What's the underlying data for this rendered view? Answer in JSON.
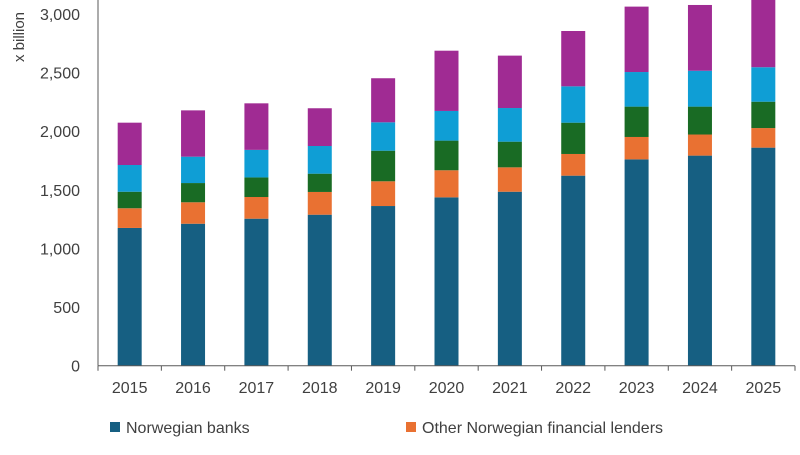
{
  "chart_data": {
    "type": "bar",
    "stacked": true,
    "ylabel": "x billion",
    "ylim": [
      0,
      3000
    ],
    "yticks": [
      "0",
      "500",
      "1,000",
      "1,500",
      "2,000",
      "2,500",
      "3,000"
    ],
    "ytick_values": [
      0,
      500,
      1000,
      1500,
      2000,
      2500,
      3000
    ],
    "grid": false,
    "legend_position": "bottom",
    "categories": [
      "2015",
      "2016",
      "2017",
      "2018",
      "2019",
      "2020",
      "2021",
      "2022",
      "2023",
      "2024",
      "2025"
    ],
    "series": [
      {
        "name": "Norwegian banks",
        "color": "#165f82",
        "values": [
          1175,
          1211,
          1254,
          1288,
          1362,
          1436,
          1484,
          1621,
          1760,
          1792,
          1860
        ]
      },
      {
        "name": "Other Norwegian financial lenders",
        "color": "#e97132",
        "values": [
          168,
          183,
          185,
          194,
          211,
          231,
          208,
          185,
          191,
          180,
          167
        ]
      },
      {
        "color": "#196b24",
        "values": [
          141,
          164,
          167,
          156,
          261,
          253,
          219,
          267,
          259,
          238,
          225
        ]
      },
      {
        "color": "#0f9ed5",
        "values": [
          228,
          225,
          235,
          236,
          242,
          253,
          287,
          310,
          295,
          306,
          294
        ]
      },
      {
        "color": "#a02b93",
        "values": [
          361,
          395,
          397,
          322,
          376,
          514,
          447,
          472,
          558,
          561,
          600
        ]
      }
    ]
  }
}
